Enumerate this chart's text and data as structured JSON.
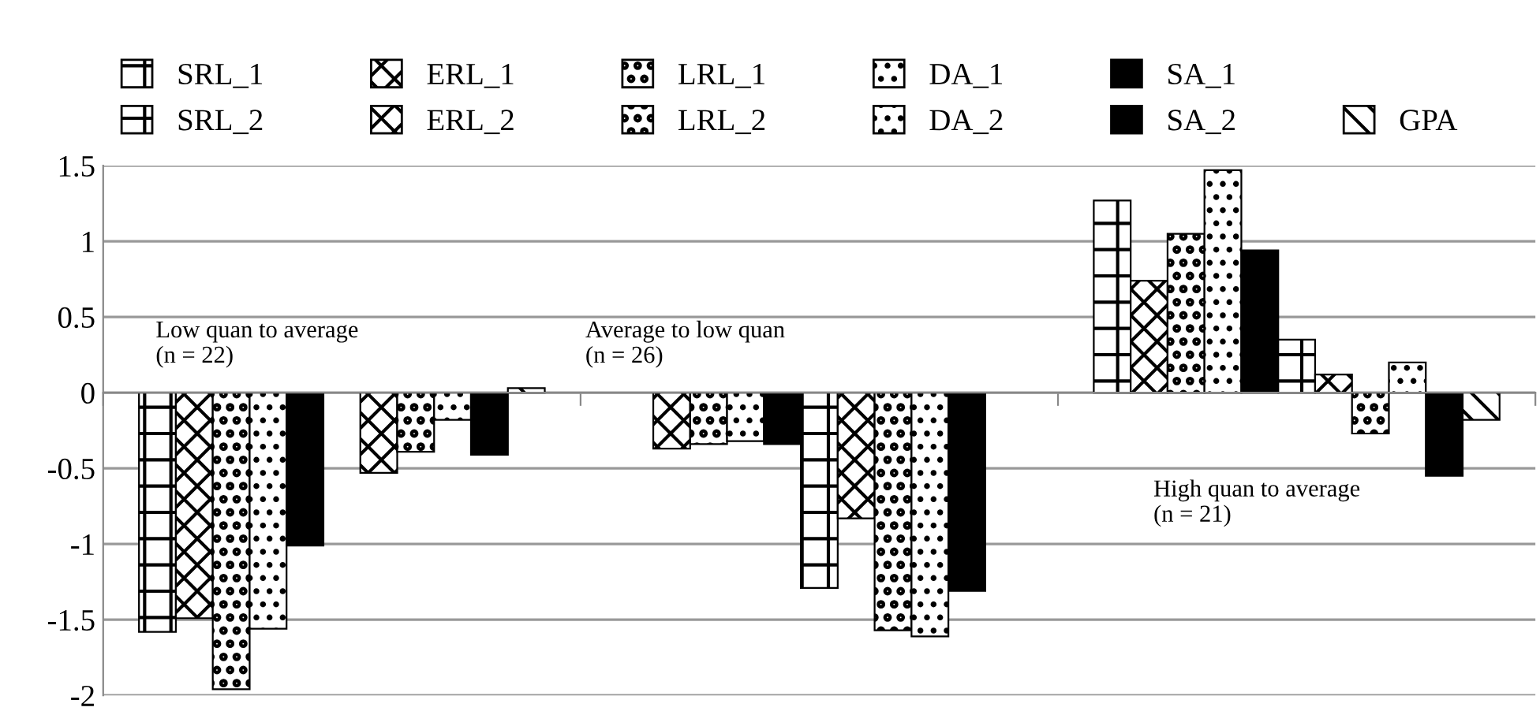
{
  "chart_data": {
    "type": "bar",
    "categories": [
      null,
      null,
      null
    ],
    "series": [
      {
        "name": "SRL_1",
        "color": "#000000",
        "values": [
          -1.58,
          null,
          1.27
        ]
      },
      {
        "name": "ERL_1",
        "color": "#000000",
        "values": [
          -1.49,
          -0.37,
          0.74
        ]
      },
      {
        "name": "LRL_1",
        "color": "#000000",
        "values": [
          -1.96,
          -0.34,
          1.05
        ]
      },
      {
        "name": "DA_1",
        "color": "#000000",
        "values": [
          -1.56,
          -0.32,
          1.47
        ]
      },
      {
        "name": "SA_1",
        "color": "#000000",
        "values": [
          -1.01,
          -0.34,
          0.94
        ]
      },
      {
        "name": "SRL_2",
        "color": "#000000",
        "values": [
          null,
          -1.29,
          0.35
        ]
      },
      {
        "name": "ERL_2",
        "color": "#000000",
        "values": [
          -0.53,
          -0.83,
          0.12
        ]
      },
      {
        "name": "LRL_2",
        "color": "#000000",
        "values": [
          -0.39,
          -1.57,
          -0.27
        ]
      },
      {
        "name": "DA_2",
        "color": "#000000",
        "values": [
          -0.18,
          -1.61,
          0.2
        ]
      },
      {
        "name": "SA_2",
        "color": "#000000",
        "values": [
          -0.41,
          -1.31,
          -0.55
        ]
      },
      {
        "name": "GPA",
        "color": "#000000",
        "values": [
          0.03,
          null,
          -0.18
        ]
      }
    ],
    "ylim": [
      -2,
      1.5
    ],
    "yticks": [
      -2,
      -1.5,
      -1,
      -0.5,
      0,
      0.5,
      1,
      1.5
    ],
    "grid": "y",
    "legend": "top",
    "annotations": [
      "Low quan to average\n(n = 22)",
      "Average to low quan\n(n = 26)",
      "High quan to average\n(n = 21)"
    ]
  }
}
